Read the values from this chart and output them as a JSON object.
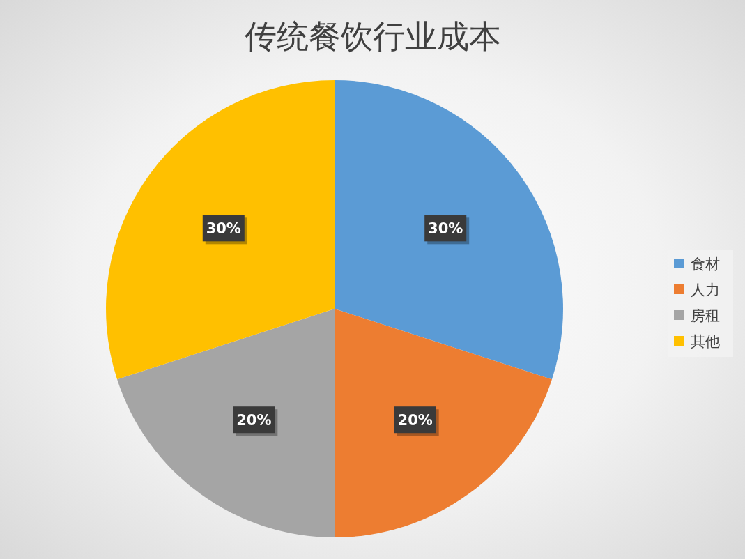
{
  "chart_data": {
    "type": "pie",
    "title": "传统餐饮行业成本",
    "categories": [
      "食材",
      "人力",
      "房租",
      "其他"
    ],
    "values": [
      30,
      20,
      20,
      30
    ],
    "colors": [
      "#5b9bd5",
      "#ed7d31",
      "#a5a5a5",
      "#ffc000"
    ],
    "value_labels": [
      "30%",
      "20%",
      "20%",
      "30%"
    ],
    "legend": "right"
  }
}
